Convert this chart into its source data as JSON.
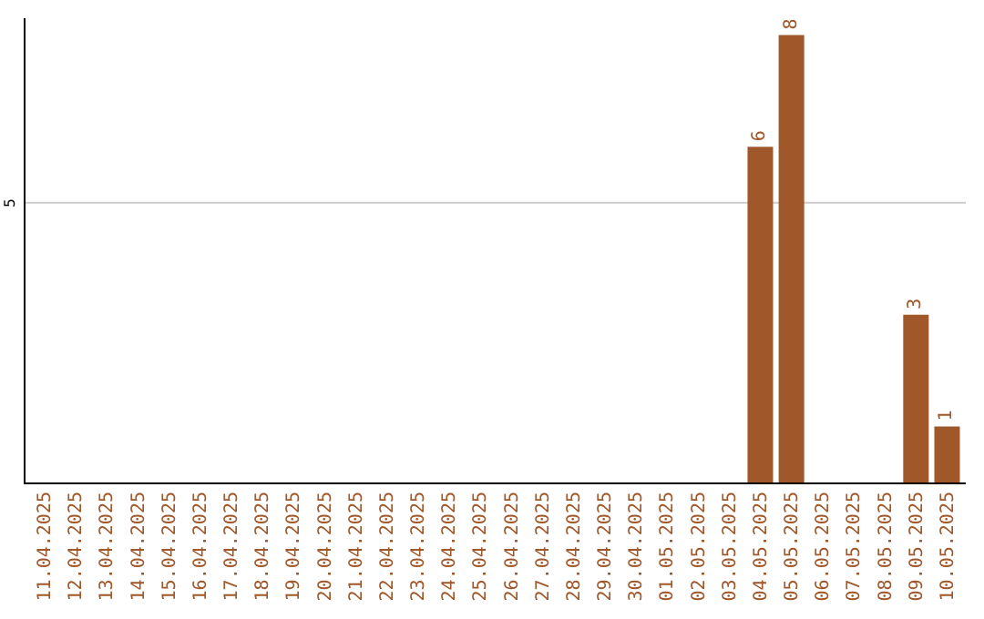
{
  "chart_data": {
    "type": "bar",
    "categories": [
      "11.04.2025",
      "12.04.2025",
      "13.04.2025",
      "14.04.2025",
      "15.04.2025",
      "16.04.2025",
      "17.04.2025",
      "18.04.2025",
      "19.04.2025",
      "20.04.2025",
      "21.04.2025",
      "22.04.2025",
      "23.04.2025",
      "24.04.2025",
      "25.04.2025",
      "26.04.2025",
      "27.04.2025",
      "28.04.2025",
      "29.04.2025",
      "30.04.2025",
      "01.05.2025",
      "02.05.2025",
      "03.05.2025",
      "04.05.2025",
      "05.05.2025",
      "06.05.2025",
      "07.05.2025",
      "08.05.2025",
      "09.05.2025",
      "10.05.2025"
    ],
    "values": [
      null,
      null,
      null,
      null,
      null,
      null,
      null,
      null,
      null,
      null,
      null,
      null,
      null,
      null,
      null,
      null,
      null,
      null,
      null,
      null,
      null,
      null,
      null,
      6,
      8,
      null,
      null,
      null,
      3,
      1
    ],
    "data_labels": true,
    "color": "#a0572a",
    "ylim": [
      0,
      8.3
    ],
    "ref_lines": [
      {
        "axis": "y",
        "value": 5,
        "label": "5",
        "color": "#cccccc"
      }
    ],
    "legend": false
  }
}
